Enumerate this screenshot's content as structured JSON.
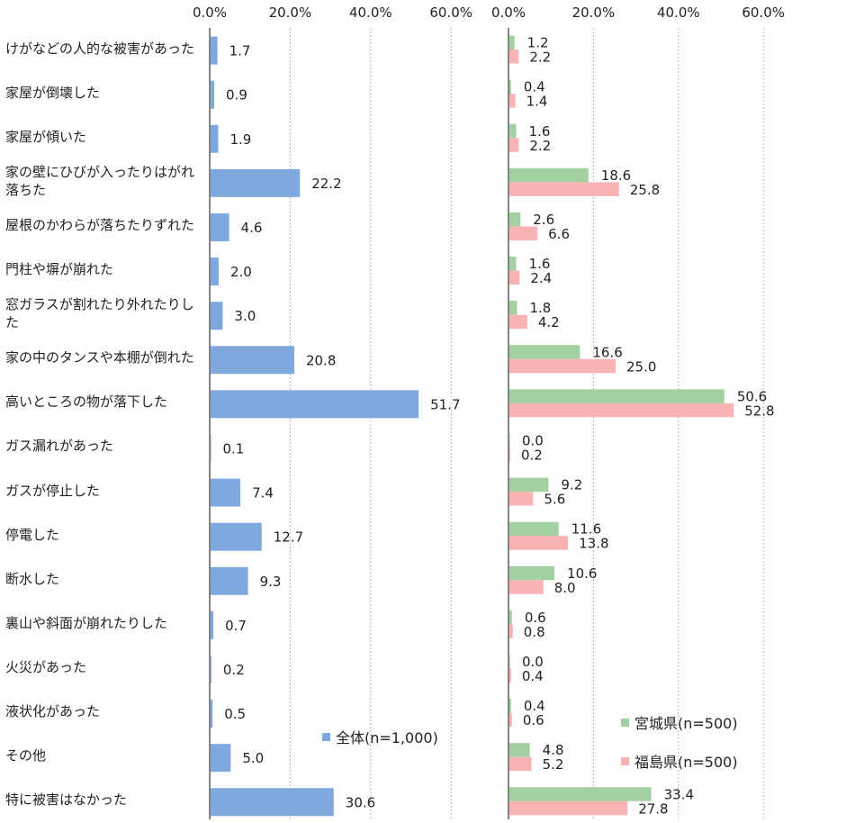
{
  "chart_data": [
    {
      "type": "bar",
      "orientation": "horizontal",
      "categories": [
        "けがなどの人的な被害があった",
        "家屋が倒壊した",
        "家屋が傾いた",
        "家の壁にひびが入ったりはがれ落ちた",
        "屋根のかわらが落ちたりずれた",
        "門柱や塀が崩れた",
        "窓ガラスが割れたり外れたりした",
        "家の中のタンスや本棚が倒れた",
        "高いところの物が落下した",
        "ガス漏れがあった",
        "ガスが停止した",
        "停電した",
        "断水した",
        "裏山や斜面が崩れたりした",
        "火災があった",
        "液状化があった",
        "その他",
        "特に被害はなかった"
      ],
      "series": [
        {
          "name": "全体(n=1,000)",
          "color": "#7fa9de",
          "values": [
            1.7,
            0.9,
            1.9,
            22.2,
            4.6,
            2.0,
            3.0,
            20.8,
            51.7,
            0.1,
            7.4,
            12.7,
            9.3,
            0.7,
            0.2,
            0.5,
            5.0,
            30.6
          ],
          "labels": [
            "1.7",
            "0.9",
            "1.9",
            "22.2",
            "4.6",
            "2.0",
            "3.0",
            "20.8",
            "51.7",
            "0.1",
            "7.4",
            "12.7",
            "9.3",
            "0.7",
            "0.2",
            "0.5",
            "5.0",
            "30.6"
          ]
        }
      ],
      "xlim": [
        0,
        60
      ],
      "ticks": [
        "0.0%",
        "20.0%",
        "40.0%",
        "60.0%"
      ],
      "grid": true
    },
    {
      "type": "bar",
      "orientation": "horizontal",
      "series": [
        {
          "name": "宮城県(n=500)",
          "color": "#a3d0a0",
          "values": [
            1.2,
            0.4,
            1.6,
            18.6,
            2.6,
            1.6,
            1.8,
            16.6,
            50.6,
            0.0,
            9.2,
            11.6,
            10.6,
            0.6,
            0.0,
            0.4,
            4.8,
            33.4
          ],
          "labels": [
            "1.2",
            "0.4",
            "1.6",
            "18.6",
            "2.6",
            "1.6",
            "1.8",
            "16.6",
            "50.6",
            "0.0",
            "9.2",
            "11.6",
            "10.6",
            "0.6",
            "0.0",
            "0.4",
            "4.8",
            "33.4"
          ]
        },
        {
          "name": "福島県(n=500)",
          "color": "#f9b3b5",
          "values": [
            2.2,
            1.4,
            2.2,
            25.8,
            6.6,
            2.4,
            4.2,
            25.0,
            52.8,
            0.2,
            5.6,
            13.8,
            8.0,
            0.8,
            0.4,
            0.6,
            5.2,
            27.8
          ],
          "labels": [
            "2.2",
            "1.4",
            "2.2",
            "25.8",
            "6.6",
            "2.4",
            "4.2",
            "25.0",
            "52.8",
            "0.2",
            "5.6",
            "13.8",
            "8.0",
            "0.8",
            "0.4",
            "0.6",
            "5.2",
            "27.8"
          ]
        }
      ],
      "xlim": [
        0,
        60
      ],
      "ticks": [
        "0.0%",
        "20.0%",
        "40.0%",
        "60.0%"
      ],
      "grid": true
    }
  ]
}
